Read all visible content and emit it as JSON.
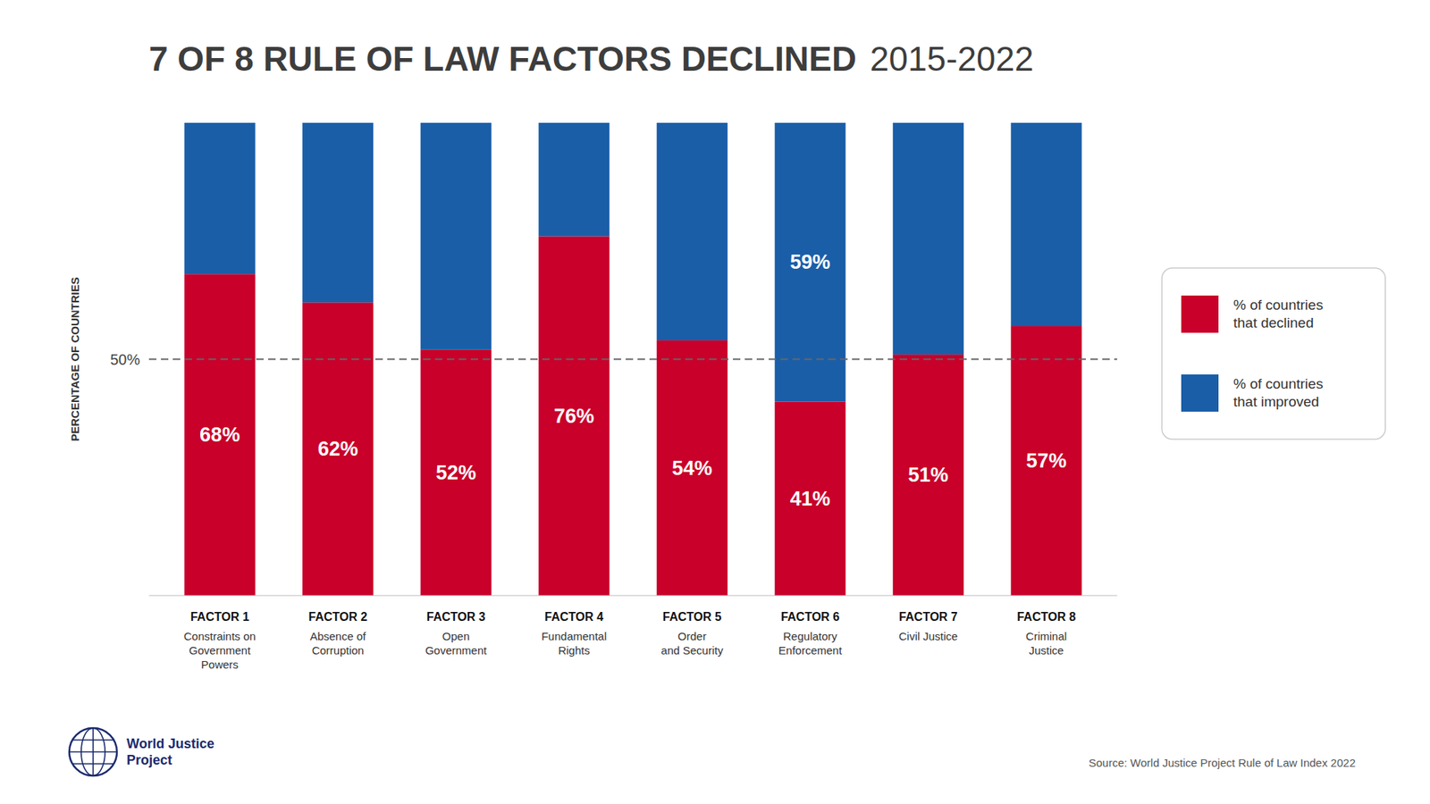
{
  "chart_data": {
    "type": "bar",
    "stacked": true,
    "title": "7 OF 8 RULE OF LAW FACTORS DECLINED",
    "subtitle": "2015-2022",
    "y_label": "PERCENTAGE OF COUNTRIES",
    "categories": [
      "FACTOR 1\nConstraints on\nGovernment\nPowers",
      "FACTOR 2\nAbsence of\nCorruption",
      "FACTOR 3\nOpen\nGovernment",
      "FACTOR 4\nFundamental\nRights",
      "FACTOR 5\nOrder\nand Security",
      "FACTOR 6\nRegulatory\nEnforcement",
      "FACTOR 7\nCivil Justice",
      "FACTOR 8\nCriminal\nJustice"
    ],
    "series": [
      {
        "name": "% of countries\nthat declined",
        "color": "#C8002A",
        "values": [
          68,
          62,
          52,
          76,
          54,
          41,
          51,
          57
        ],
        "value_labels": [
          "68%",
          "62%",
          "52%",
          "76%",
          "54%",
          "41%",
          "51%",
          "57%"
        ]
      },
      {
        "name": "% of countries\nthat improved",
        "color": "#1A5EA8",
        "values": [
          32,
          38,
          48,
          24,
          46,
          59,
          49,
          43
        ],
        "value_labels": [
          null,
          null,
          null,
          null,
          null,
          "59%",
          null,
          null
        ]
      }
    ],
    "ylim": [
      0,
      100
    ],
    "tick_labels": "x",
    "grid": false,
    "legend": "right",
    "data_labels": true,
    "annotations": [
      {
        "y": 50,
        "label": "50%"
      },
      {
        "text": "Source: World Justice Project Rule of Law Index 2022"
      },
      {
        "text": "World Justice\nProject"
      }
    ]
  }
}
